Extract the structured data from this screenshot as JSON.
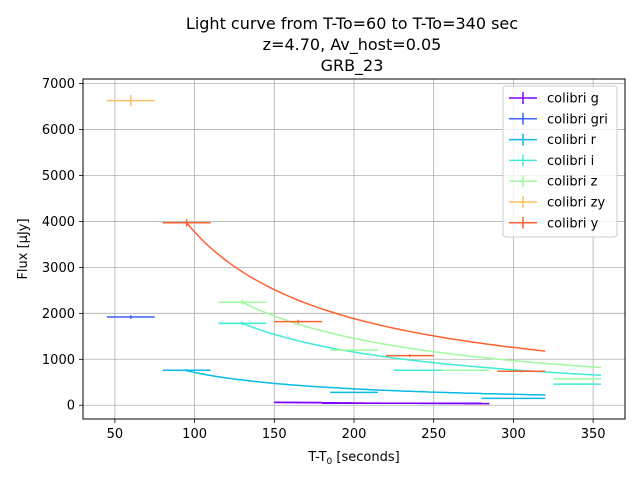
{
  "chart_data": {
    "type": "line",
    "title_lines": [
      "Light curve from T-To=60 to T-To=340 sec",
      "z=4.70, Av_host=0.05",
      "GRB_23"
    ],
    "xlabel": "T-T",
    "xlabel_sub": "0",
    "xlabel_unit": "[seconds]",
    "ylabel": "Flux [μJy]",
    "xlim": [
      30,
      370
    ],
    "ylim": [
      -300,
      7100
    ],
    "xticks": [
      50,
      100,
      150,
      200,
      250,
      300,
      350
    ],
    "yticks": [
      0,
      1000,
      2000,
      3000,
      4000,
      5000,
      6000,
      7000
    ],
    "grid": true,
    "legend_position": "top-right",
    "decay_index": 1,
    "series": [
      {
        "name": "colibri g",
        "color": "#7f00ff",
        "curve": {
          "t_start": 150,
          "t_end": 285,
          "t_ref": 150,
          "f_ref": 65
        },
        "points": [
          {
            "x": 165,
            "y": 60,
            "xerr": 15,
            "yerr": 20
          },
          {
            "x": 230,
            "y": 42,
            "xerr": 50,
            "yerr": 15
          }
        ]
      },
      {
        "name": "colibri gri",
        "color": "#3f61fa",
        "curve": null,
        "points": [
          {
            "x": 60,
            "y": 1920,
            "xerr": 15,
            "yerr": 40
          }
        ]
      },
      {
        "name": "colibri r",
        "color": "#07bbe6",
        "curve": {
          "t_start": 95,
          "t_end": 320,
          "t_ref": 95,
          "f_ref": 750
        },
        "points": [
          {
            "x": 95,
            "y": 760,
            "xerr": 15,
            "yerr": 25
          },
          {
            "x": 200,
            "y": 280,
            "xerr": 15,
            "yerr": 15
          },
          {
            "x": 300,
            "y": 150,
            "xerr": 20,
            "yerr": 10
          }
        ]
      },
      {
        "name": "colibri i",
        "color": "#40ecd4",
        "curve": {
          "t_start": 115,
          "t_end": 355,
          "t_ref": 130,
          "f_ref": 1780
        },
        "points": [
          {
            "x": 130,
            "y": 1780,
            "xerr": 15,
            "yerr": 40
          },
          {
            "x": 240,
            "y": 760,
            "xerr": 15,
            "yerr": 20
          },
          {
            "x": 340,
            "y": 460,
            "xerr": 15,
            "yerr": 15
          }
        ]
      },
      {
        "name": "colibri z",
        "color": "#a0fa9f",
        "curve": {
          "t_start": 115,
          "t_end": 355,
          "t_ref": 130,
          "f_ref": 2240
        },
        "points": [
          {
            "x": 130,
            "y": 2240,
            "xerr": 15,
            "yerr": 50
          },
          {
            "x": 200,
            "y": 1200,
            "xerr": 15,
            "yerr": 30
          },
          {
            "x": 270,
            "y": 760,
            "xerr": 15,
            "yerr": 20
          },
          {
            "x": 340,
            "y": 570,
            "xerr": 15,
            "yerr": 15
          }
        ]
      },
      {
        "name": "colibri zy",
        "color": "#ffbf64",
        "curve": null,
        "points": [
          {
            "x": 60,
            "y": 6630,
            "xerr": 15,
            "yerr": 120
          }
        ]
      },
      {
        "name": "colibri y",
        "color": "#ff6232",
        "curve": {
          "t_start": 80,
          "t_end": 320,
          "t_ref": 95,
          "f_ref": 3970
        },
        "points": [
          {
            "x": 95,
            "y": 3970,
            "xerr": 15,
            "yerr": 80
          },
          {
            "x": 165,
            "y": 1820,
            "xerr": 15,
            "yerr": 40
          },
          {
            "x": 235,
            "y": 1080,
            "xerr": 15,
            "yerr": 30
          },
          {
            "x": 305,
            "y": 740,
            "xerr": 15,
            "yerr": 25
          }
        ]
      }
    ]
  }
}
